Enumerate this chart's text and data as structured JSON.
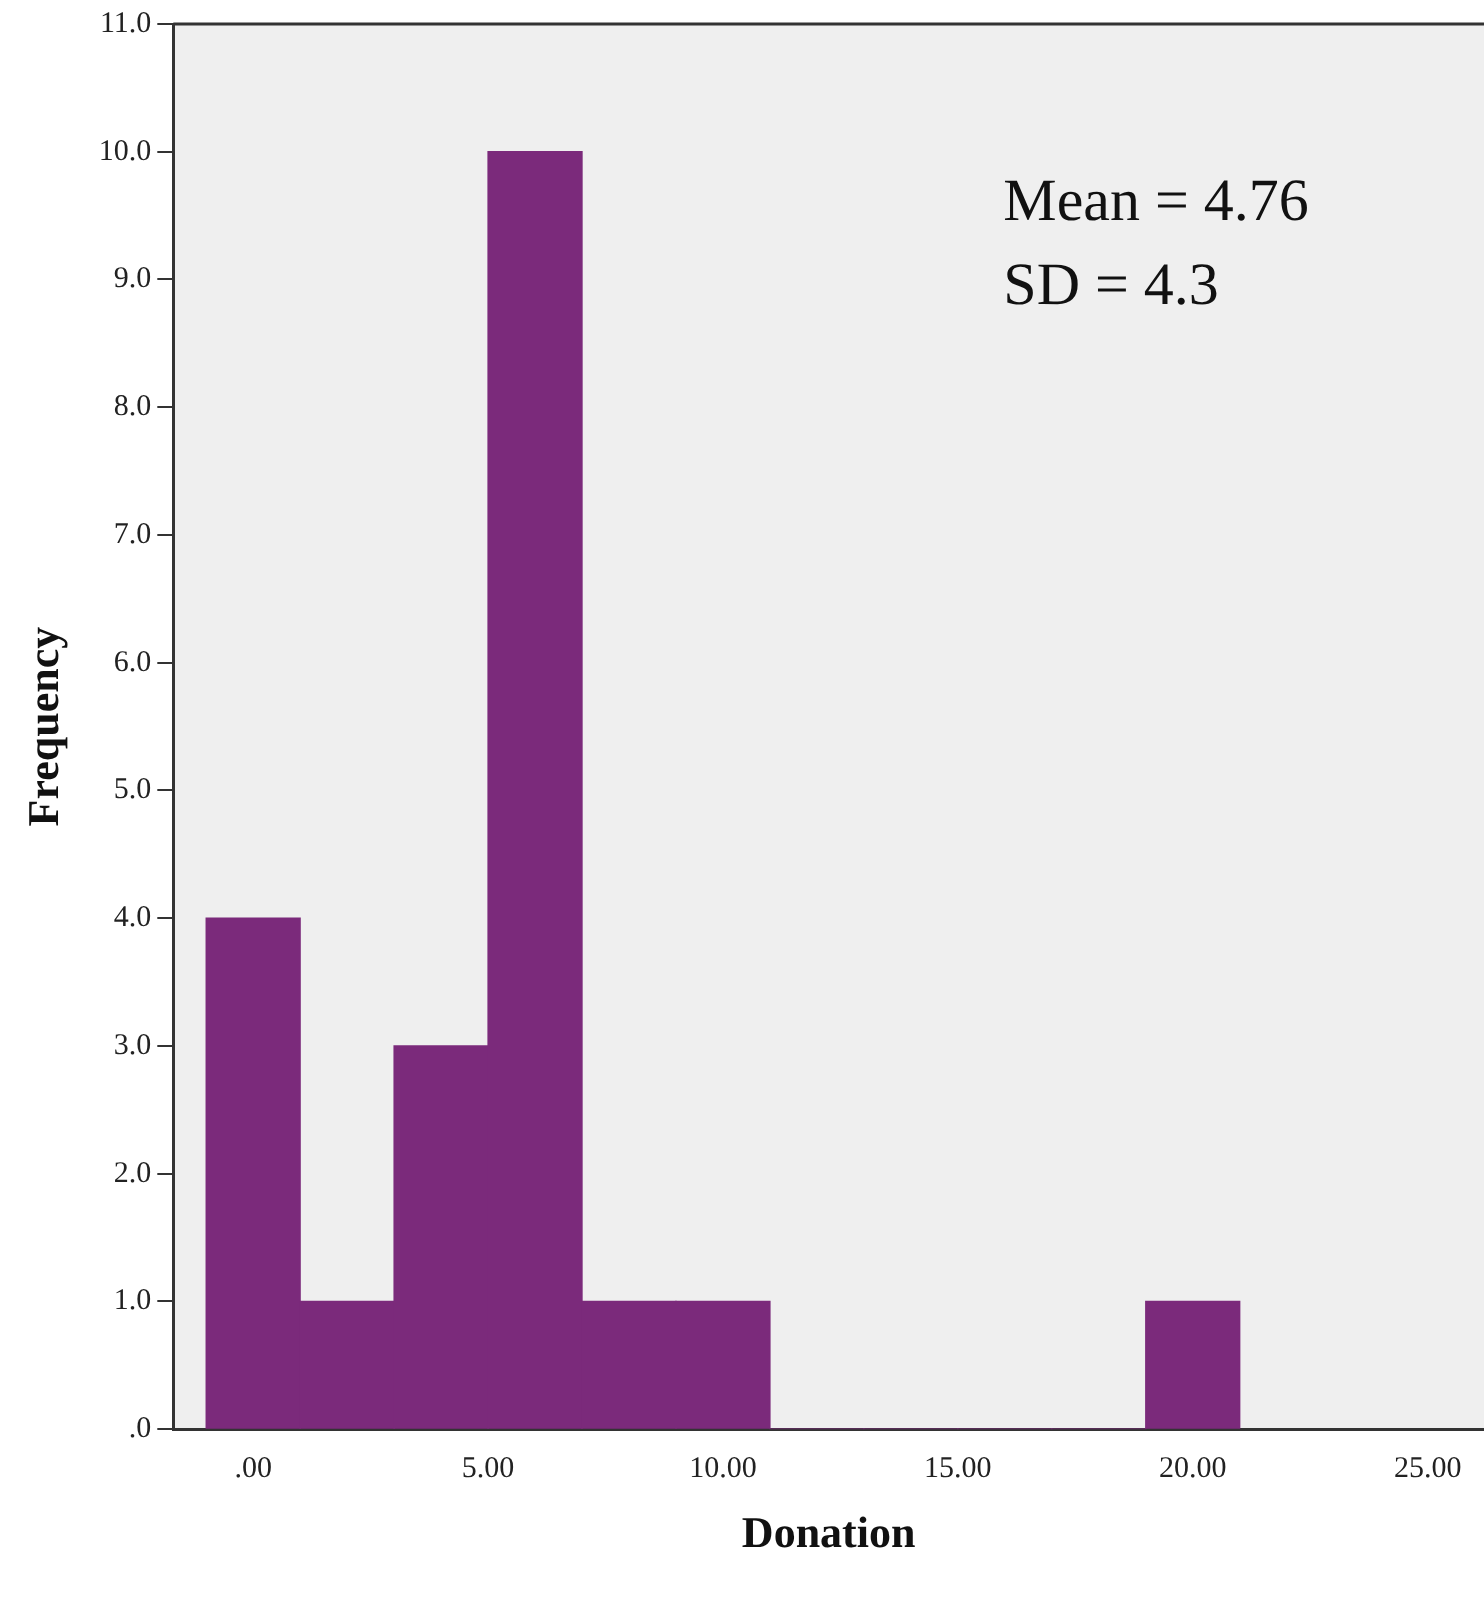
{
  "chart_data": {
    "type": "histogram",
    "xlabel": "Donation",
    "ylabel": "Frequency",
    "bins": [
      -1,
      1,
      3,
      5,
      7,
      9,
      11,
      13,
      15,
      17,
      19,
      21
    ],
    "values": [
      4,
      1,
      3,
      10,
      1,
      1,
      0,
      0,
      0,
      0,
      1
    ],
    "color": "#7b2a7b",
    "xlim": [
      -1.7,
      26.2
    ],
    "xticks": [
      {
        "value": 0,
        "label": ".00"
      },
      {
        "value": 5,
        "label": "5.00"
      },
      {
        "value": 10,
        "label": "10.00"
      },
      {
        "value": 15,
        "label": "15.00"
      },
      {
        "value": 20,
        "label": "20.00"
      },
      {
        "value": 25,
        "label": "25.00"
      }
    ],
    "ylim": [
      0,
      11
    ],
    "yticks": [
      {
        "value": 0,
        "label": ".0"
      },
      {
        "value": 1,
        "label": "1.0"
      },
      {
        "value": 2,
        "label": "2.0"
      },
      {
        "value": 3,
        "label": "3.0"
      },
      {
        "value": 4,
        "label": "4.0"
      },
      {
        "value": 5,
        "label": "5.0"
      },
      {
        "value": 6,
        "label": "6.0"
      },
      {
        "value": 7,
        "label": "7.0"
      },
      {
        "value": 8,
        "label": "8.0"
      },
      {
        "value": 9,
        "label": "9.0"
      },
      {
        "value": 10,
        "label": "10.0"
      },
      {
        "value": 11,
        "label": "11.0"
      }
    ],
    "annotations": [
      "Mean = 4.76",
      "SD = 4.3"
    ],
    "grid": false,
    "legend": false
  }
}
